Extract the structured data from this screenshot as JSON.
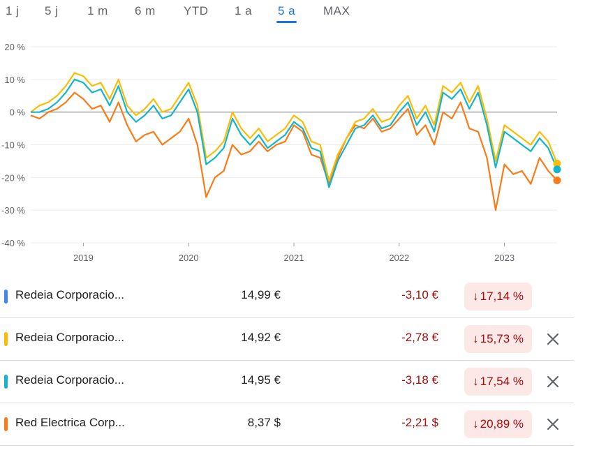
{
  "tabs": [
    {
      "label": "1 j",
      "active": false
    },
    {
      "label": "5 j",
      "active": false
    },
    {
      "label": "1 m",
      "active": false
    },
    {
      "label": "6 m",
      "active": false
    },
    {
      "label": "YTD",
      "active": false
    },
    {
      "label": "1 a",
      "active": false
    },
    {
      "label": "5 a",
      "active": true
    },
    {
      "label": "MAX",
      "active": false
    }
  ],
  "chart_data": {
    "type": "line",
    "title": "",
    "xlabel": "",
    "ylabel": "",
    "ylim": [
      -40,
      20
    ],
    "yticks": [
      "20 %",
      "10 %",
      "0 %",
      "-10 %",
      "-20 %",
      "-30 %",
      "-40 %"
    ],
    "ytick_values": [
      20,
      10,
      0,
      -10,
      -20,
      -30,
      -40
    ],
    "xlim": [
      "2018-07",
      "2023-07"
    ],
    "xticks": [
      "2019",
      "2020",
      "2021",
      "2022",
      "2023"
    ],
    "xtick_values": [
      "2019-01",
      "2020-01",
      "2021-01",
      "2022-01",
      "2023-01"
    ],
    "baseline": 0,
    "grid": true,
    "series": [
      {
        "color": "#fbbc04",
        "x": [
          "2018-07",
          "2018-08",
          "2018-09",
          "2018-10",
          "2018-11",
          "2018-12",
          "2019-01",
          "2019-02",
          "2019-03",
          "2019-04",
          "2019-05",
          "2019-06",
          "2019-07",
          "2019-08",
          "2019-09",
          "2019-10",
          "2019-11",
          "2019-12",
          "2020-01",
          "2020-02",
          "2020-03",
          "2020-04",
          "2020-05",
          "2020-06",
          "2020-07",
          "2020-08",
          "2020-09",
          "2020-10",
          "2020-11",
          "2020-12",
          "2021-01",
          "2021-02",
          "2021-03",
          "2021-04",
          "2021-05",
          "2021-06",
          "2021-07",
          "2021-08",
          "2021-09",
          "2021-10",
          "2021-11",
          "2021-12",
          "2022-01",
          "2022-02",
          "2022-03",
          "2022-04",
          "2022-05",
          "2022-06",
          "2022-07",
          "2022-08",
          "2022-09",
          "2022-10",
          "2022-11",
          "2022-12",
          "2023-01",
          "2023-02",
          "2023-03",
          "2023-04",
          "2023-05",
          "2023-06",
          "2023-07"
        ],
        "values": [
          0,
          2,
          3,
          5,
          8,
          12,
          11,
          8,
          9,
          4,
          10,
          2,
          -1,
          1,
          4,
          0,
          1,
          5,
          9,
          2,
          -14,
          -12,
          -9,
          0,
          -5,
          -8,
          -5,
          -9,
          -7,
          -5,
          -1,
          -3,
          -9,
          -10,
          -21,
          -13,
          -8,
          -3,
          -2,
          1,
          -3,
          -2,
          2,
          5,
          -2,
          2,
          -4,
          8,
          6,
          9,
          3,
          8,
          -2,
          -15,
          -4,
          -6,
          -8,
          -10,
          -6,
          -9,
          -15.7
        ]
      },
      {
        "color": "#12b5cb",
        "x": [
          "2018-07",
          "2018-08",
          "2018-09",
          "2018-10",
          "2018-11",
          "2018-12",
          "2019-01",
          "2019-02",
          "2019-03",
          "2019-04",
          "2019-05",
          "2019-06",
          "2019-07",
          "2019-08",
          "2019-09",
          "2019-10",
          "2019-11",
          "2019-12",
          "2020-01",
          "2020-02",
          "2020-03",
          "2020-04",
          "2020-05",
          "2020-06",
          "2020-07",
          "2020-08",
          "2020-09",
          "2020-10",
          "2020-11",
          "2020-12",
          "2021-01",
          "2021-02",
          "2021-03",
          "2021-04",
          "2021-05",
          "2021-06",
          "2021-07",
          "2021-08",
          "2021-09",
          "2021-10",
          "2021-11",
          "2021-12",
          "2022-01",
          "2022-02",
          "2022-03",
          "2022-04",
          "2022-05",
          "2022-06",
          "2022-07",
          "2022-08",
          "2022-09",
          "2022-10",
          "2022-11",
          "2022-12",
          "2023-01",
          "2023-02",
          "2023-03",
          "2023-04",
          "2023-05",
          "2023-06",
          "2023-07"
        ],
        "values": [
          0,
          0,
          1,
          3,
          6,
          10,
          9,
          6,
          7,
          2,
          8,
          0,
          -3,
          -1,
          2,
          -2,
          -1,
          3,
          7,
          0,
          -16,
          -14,
          -11,
          -2,
          -7,
          -10,
          -7,
          -11,
          -9,
          -7,
          -3,
          -5,
          -11,
          -12,
          -23,
          -15,
          -10,
          -5,
          -4,
          -1,
          -5,
          -4,
          0,
          3,
          -4,
          0,
          -6,
          6,
          4,
          7,
          1,
          6,
          -4,
          -17,
          -6,
          -8,
          -10,
          -12,
          -8,
          -11,
          -17.5
        ]
      },
      {
        "color": "#fa7b17",
        "x": [
          "2018-07",
          "2018-08",
          "2018-09",
          "2018-10",
          "2018-11",
          "2018-12",
          "2019-01",
          "2019-02",
          "2019-03",
          "2019-04",
          "2019-05",
          "2019-06",
          "2019-07",
          "2019-08",
          "2019-09",
          "2019-10",
          "2019-11",
          "2019-12",
          "2020-01",
          "2020-02",
          "2020-03",
          "2020-04",
          "2020-05",
          "2020-06",
          "2020-07",
          "2020-08",
          "2020-09",
          "2020-10",
          "2020-11",
          "2020-12",
          "2021-01",
          "2021-02",
          "2021-03",
          "2021-04",
          "2021-05",
          "2021-06",
          "2021-07",
          "2021-08",
          "2021-09",
          "2021-10",
          "2021-11",
          "2021-12",
          "2022-01",
          "2022-02",
          "2022-03",
          "2022-04",
          "2022-05",
          "2022-06",
          "2022-07",
          "2022-08",
          "2022-09",
          "2022-10",
          "2022-11",
          "2022-12",
          "2023-01",
          "2023-02",
          "2023-03",
          "2023-04",
          "2023-05",
          "2023-06",
          "2023-07"
        ],
        "values": [
          -1,
          -2,
          0,
          1,
          3,
          6,
          4,
          1,
          2,
          -3,
          3,
          -4,
          -9,
          -7,
          -6,
          -10,
          -8,
          -6,
          -2,
          -10,
          -26,
          -20,
          -18,
          -10,
          -13,
          -12,
          -9,
          -12,
          -10,
          -9,
          -4,
          -6,
          -13,
          -14,
          -22,
          -14,
          -8,
          -4,
          -5,
          -2,
          -6,
          -5,
          -2,
          1,
          -7,
          -4,
          -10,
          0,
          -2,
          3,
          -5,
          -6,
          -14,
          -30,
          -16,
          -19,
          -18,
          -22,
          -14,
          -18,
          -20.9
        ]
      }
    ],
    "end_markers": [
      {
        "color": "#fbbc04",
        "value": -15.73
      },
      {
        "color": "#12b5cb",
        "value": -17.54
      },
      {
        "color": "#fa7b17",
        "value": -20.89
      }
    ]
  },
  "rows": [
    {
      "color": "#4285f4",
      "name": "Redeia Corporacio...",
      "price": "14,99 €",
      "change": "-3,10 €",
      "pct": "17,14 %",
      "arrow": "↓",
      "has_close": false
    },
    {
      "color": "#fbbc04",
      "name": "Redeia Corporacio...",
      "price": "14,92 €",
      "change": "-2,78 €",
      "pct": "15,73 %",
      "arrow": "↓",
      "has_close": true
    },
    {
      "color": "#12b5cb",
      "name": "Redeia Corporacio...",
      "price": "14,95 €",
      "change": "-3,18 €",
      "pct": "17,54 %",
      "arrow": "↓",
      "has_close": true
    },
    {
      "color": "#fa7b17",
      "name": "Red Electrica Corp...",
      "price": "8,37 $",
      "change": "-2,21 $",
      "pct": "20,89 %",
      "arrow": "↓",
      "has_close": true
    }
  ]
}
